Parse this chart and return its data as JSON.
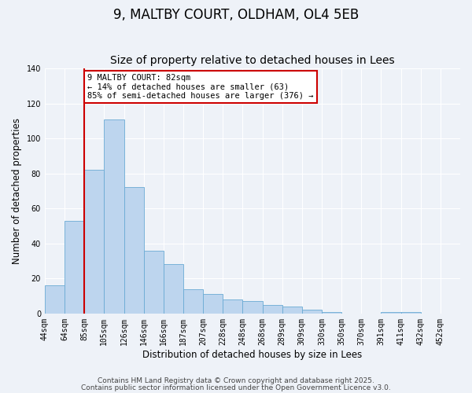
{
  "title": "9, MALTBY COURT, OLDHAM, OL4 5EB",
  "subtitle": "Size of property relative to detached houses in Lees",
  "xlabel": "Distribution of detached houses by size in Lees",
  "ylabel": "Number of detached properties",
  "bar_values": [
    16,
    53,
    82,
    111,
    72,
    36,
    28,
    14,
    11,
    8,
    7,
    5,
    4,
    2,
    1,
    0,
    0,
    1,
    1,
    0,
    0
  ],
  "bin_labels": [
    "44sqm",
    "64sqm",
    "85sqm",
    "105sqm",
    "126sqm",
    "146sqm",
    "166sqm",
    "187sqm",
    "207sqm",
    "228sqm",
    "248sqm",
    "268sqm",
    "289sqm",
    "309sqm",
    "330sqm",
    "350sqm",
    "370sqm",
    "391sqm",
    "411sqm",
    "432sqm",
    "452sqm"
  ],
  "bar_color": "#bdd5ee",
  "bar_edge_color": "#6aaad4",
  "vline_x_index": 2,
  "vline_color": "#cc0000",
  "annotation_title": "9 MALTBY COURT: 82sqm",
  "annotation_line1": "← 14% of detached houses are smaller (63)",
  "annotation_line2": "85% of semi-detached houses are larger (376) →",
  "annotation_box_facecolor": "#ffffff",
  "annotation_box_edgecolor": "#cc0000",
  "ylim": [
    0,
    140
  ],
  "yticks": [
    0,
    20,
    40,
    60,
    80,
    100,
    120,
    140
  ],
  "footer1": "Contains HM Land Registry data © Crown copyright and database right 2025.",
  "footer2": "Contains public sector information licensed under the Open Government Licence v3.0.",
  "background_color": "#eef2f8",
  "plot_background": "#eef2f8",
  "grid_color": "#ffffff",
  "title_fontsize": 12,
  "subtitle_fontsize": 10,
  "axis_label_fontsize": 8.5,
  "tick_label_fontsize": 7,
  "annotation_fontsize": 7.5,
  "footer_fontsize": 6.5
}
